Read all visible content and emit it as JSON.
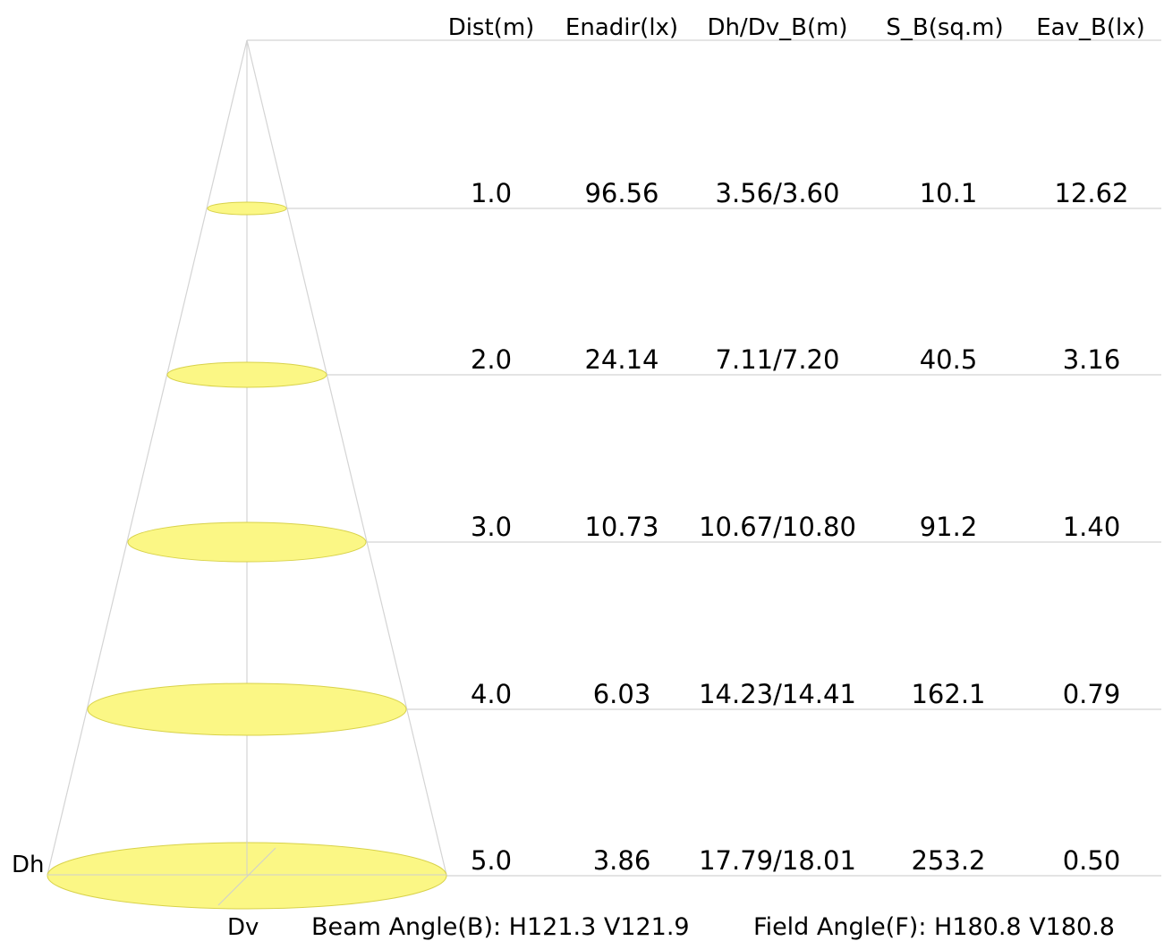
{
  "columns": [
    "Dist(m)",
    "Enadir(lx)",
    "Dh/Dv_B(m)",
    "S_B(sq.m)",
    "Eav_B(lx)"
  ],
  "rows": [
    [
      "1.0",
      "96.56",
      "3.56/3.60",
      "10.1",
      "12.62"
    ],
    [
      "2.0",
      "24.14",
      "7.11/7.20",
      "40.5",
      "3.16"
    ],
    [
      "3.0",
      "10.73",
      "10.67/10.80",
      "91.2",
      "1.40"
    ],
    [
      "4.0",
      "6.03",
      "14.23/14.41",
      "162.1",
      "0.79"
    ],
    [
      "5.0",
      "3.86",
      "17.79/18.01",
      "253.2",
      "0.50"
    ]
  ],
  "labels": {
    "dh": "Dh",
    "dv": "Dv"
  },
  "footer": {
    "beam_angle": "Beam Angle(B): H121.3 V121.9",
    "field_angle": "Field Angle(F): H180.8 V180.8"
  },
  "colors": {
    "ellipse_fill": "#fbf785",
    "ellipse_stroke": "#d8d24a",
    "lines": "#d4d4d4"
  }
}
